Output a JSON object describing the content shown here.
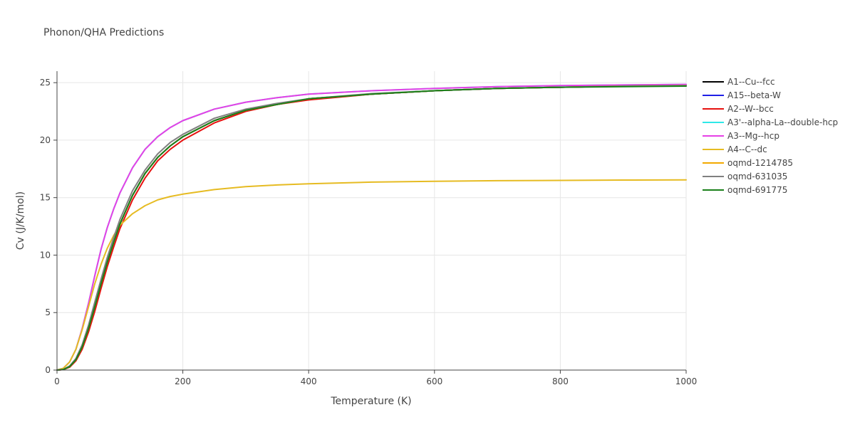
{
  "chart_data": {
    "type": "line",
    "title": "Phonon/QHA Predictions",
    "xlabel": "Temperature (K)",
    "ylabel": "Cv (J/K/mol)",
    "xlim": [
      0,
      1000
    ],
    "ylim": [
      0,
      26
    ],
    "x_ticks": [
      0,
      200,
      400,
      600,
      800,
      1000
    ],
    "y_ticks": [
      0,
      5,
      10,
      15,
      20,
      25
    ],
    "x_tick_labels": [
      "0",
      "200",
      "400",
      "600",
      "800",
      "1000"
    ],
    "y_tick_labels": [
      "0",
      "5",
      "10",
      "15",
      "20",
      "25"
    ],
    "grid": true,
    "legend_position": "right",
    "x": [
      0,
      10,
      20,
      30,
      40,
      50,
      60,
      70,
      80,
      90,
      100,
      120,
      140,
      160,
      180,
      200,
      250,
      300,
      350,
      400,
      500,
      600,
      700,
      800,
      900,
      1000
    ],
    "series": [
      {
        "name": "A1--Cu--fcc",
        "color": "#000000",
        "values": [
          0,
          0.05,
          0.3,
          0.9,
          2.0,
          3.6,
          5.5,
          7.5,
          9.4,
          11.1,
          12.7,
          15.2,
          17.1,
          18.5,
          19.5,
          20.3,
          21.7,
          22.6,
          23.1,
          23.6,
          24.0,
          24.3,
          24.5,
          24.6,
          24.7,
          24.75
        ]
      },
      {
        "name": "A15--beta-W",
        "color": "#1f1fe6",
        "values": [
          0,
          0.05,
          0.3,
          0.9,
          2.0,
          3.6,
          5.5,
          7.5,
          9.4,
          11.1,
          12.7,
          15.2,
          17.1,
          18.5,
          19.5,
          20.3,
          21.7,
          22.6,
          23.1,
          23.6,
          24.0,
          24.3,
          24.5,
          24.6,
          24.7,
          24.75
        ]
      },
      {
        "name": "A2--W--bcc",
        "color": "#e6100e",
        "values": [
          0,
          0.04,
          0.25,
          0.8,
          1.8,
          3.3,
          5.1,
          7.1,
          9.0,
          10.7,
          12.3,
          14.8,
          16.7,
          18.2,
          19.2,
          20.0,
          21.5,
          22.5,
          23.1,
          23.5,
          24.0,
          24.3,
          24.5,
          24.6,
          24.7,
          24.75
        ]
      },
      {
        "name": "A3'--alpha-La--double-hcp",
        "color": "#2ee8e8",
        "values": [
          0,
          0.15,
          0.7,
          1.8,
          3.6,
          5.8,
          8.2,
          10.5,
          12.4,
          14.0,
          15.4,
          17.6,
          19.2,
          20.3,
          21.1,
          21.7,
          22.7,
          23.3,
          23.7,
          24.0,
          24.3,
          24.5,
          24.65,
          24.75,
          24.8,
          24.85
        ]
      },
      {
        "name": "A3--Mg--hcp",
        "color": "#e640e6",
        "values": [
          0,
          0.15,
          0.7,
          1.8,
          3.6,
          5.8,
          8.2,
          10.5,
          12.4,
          14.0,
          15.4,
          17.6,
          19.2,
          20.3,
          21.1,
          21.7,
          22.7,
          23.3,
          23.7,
          24.0,
          24.3,
          24.5,
          24.65,
          24.75,
          24.8,
          24.85
        ]
      },
      {
        "name": "A4--C--dc",
        "color": "#e6bb22",
        "values": [
          0,
          0.15,
          0.7,
          1.8,
          3.5,
          5.5,
          7.5,
          9.2,
          10.6,
          11.7,
          12.6,
          13.6,
          14.3,
          14.8,
          15.1,
          15.3,
          15.7,
          15.95,
          16.1,
          16.2,
          16.35,
          16.42,
          16.47,
          16.5,
          16.53,
          16.55
        ]
      },
      {
        "name": "oqmd-1214785",
        "color": "#f2a900",
        "values": [
          0,
          0.05,
          0.3,
          0.9,
          2.0,
          3.6,
          5.5,
          7.5,
          9.4,
          11.1,
          12.7,
          15.2,
          17.1,
          18.5,
          19.5,
          20.3,
          21.7,
          22.6,
          23.1,
          23.6,
          24.0,
          24.3,
          24.5,
          24.6,
          24.7,
          24.75
        ]
      },
      {
        "name": "oqmd-631035",
        "color": "#808080",
        "values": [
          0,
          0.05,
          0.35,
          1.0,
          2.2,
          3.9,
          5.9,
          7.9,
          9.8,
          11.5,
          13.1,
          15.6,
          17.4,
          18.8,
          19.8,
          20.5,
          21.9,
          22.7,
          23.2,
          23.6,
          24.05,
          24.3,
          24.5,
          24.6,
          24.7,
          24.75
        ]
      },
      {
        "name": "oqmd-691775",
        "color": "#1a801a",
        "values": [
          0,
          0.05,
          0.3,
          0.9,
          2.0,
          3.6,
          5.5,
          7.5,
          9.4,
          11.1,
          12.7,
          15.2,
          17.1,
          18.5,
          19.5,
          20.3,
          21.7,
          22.6,
          23.1,
          23.6,
          24.0,
          24.3,
          24.5,
          24.6,
          24.65,
          24.7
        ]
      }
    ]
  }
}
